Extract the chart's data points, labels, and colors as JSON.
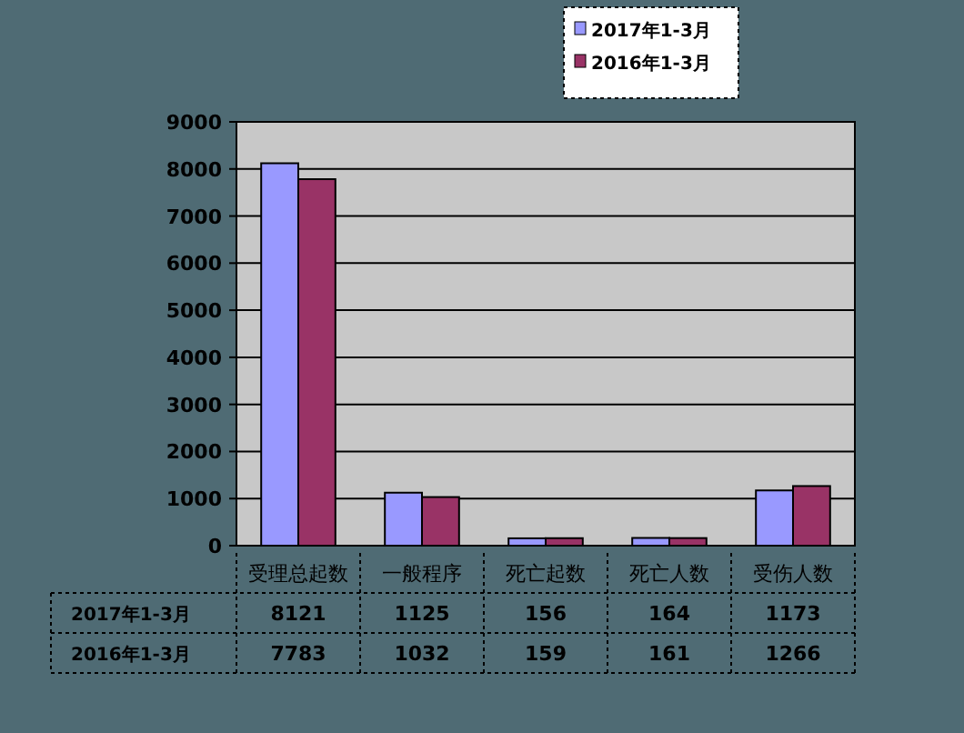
{
  "chart_data": {
    "type": "bar",
    "categories": [
      "受理总起数",
      "一般程序",
      "死亡起数",
      "死亡人数",
      "受伤人数"
    ],
    "series": [
      {
        "name": "2017年1-3月",
        "color": "#9999ff",
        "values": [
          8121,
          1125,
          156,
          164,
          1173
        ]
      },
      {
        "name": "2016年1-3月",
        "color": "#993366",
        "values": [
          7783,
          1032,
          159,
          161,
          1266
        ]
      }
    ],
    "ylim": [
      0,
      9000
    ],
    "yticks": [
      0,
      1000,
      2000,
      3000,
      4000,
      5000,
      6000,
      7000,
      8000,
      9000
    ],
    "grid": "y",
    "legend": "top",
    "data_labels": true
  }
}
